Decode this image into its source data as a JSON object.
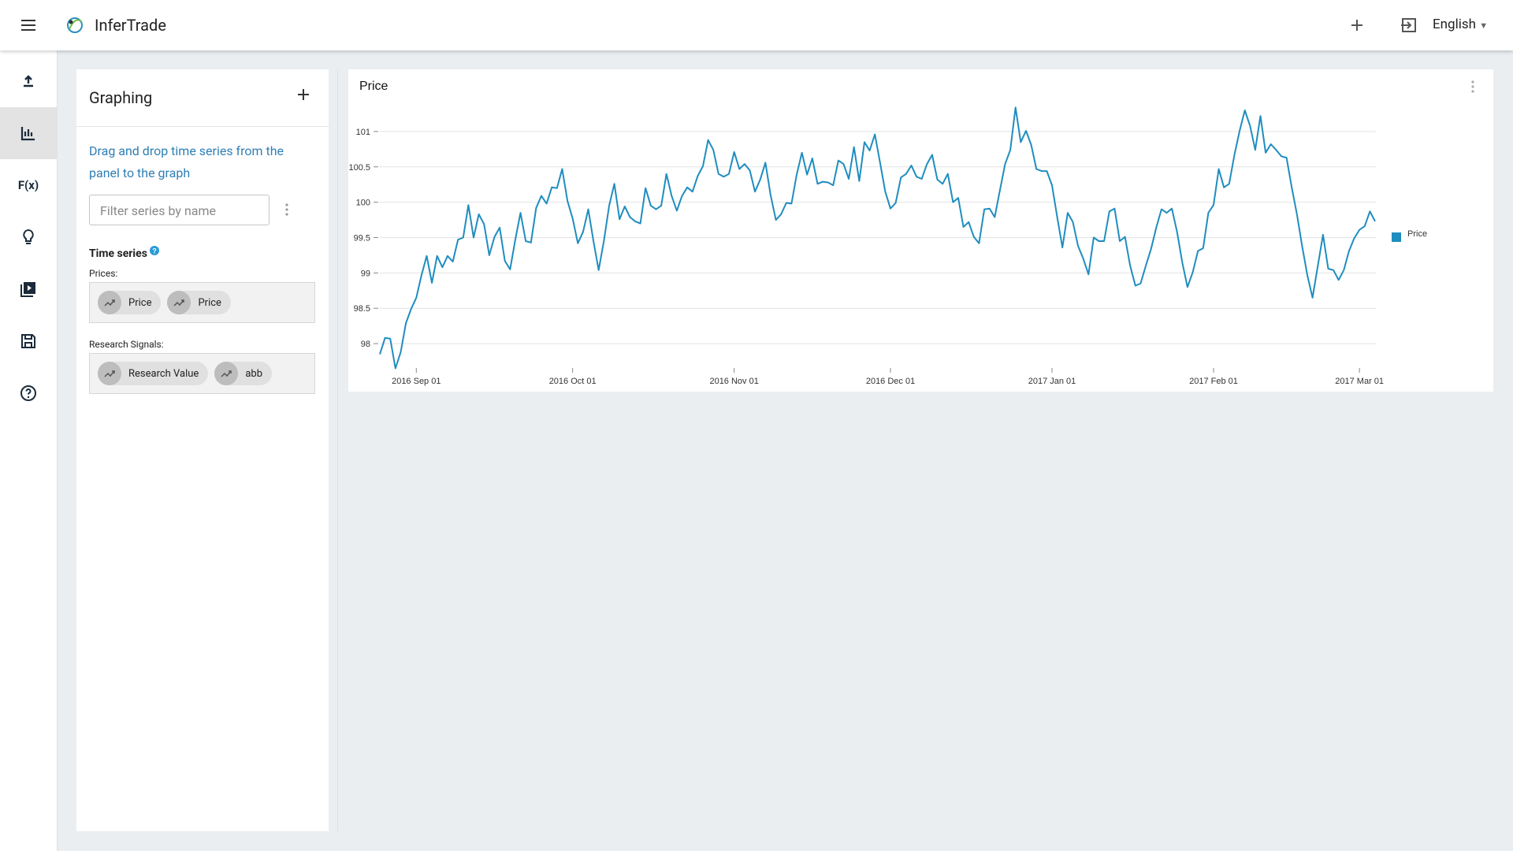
{
  "header": {
    "app_name": "InferTrade",
    "language": "English"
  },
  "sidebar": {
    "function_label": "F(x)"
  },
  "panel": {
    "title": "Graphing",
    "instructions": "Drag and drop time series from the panel to the graph",
    "filter_placeholder": "Filter series by name",
    "time_series_label": "Time series",
    "groups": [
      {
        "label": "Prices:",
        "items": [
          "Price",
          "Price"
        ]
      },
      {
        "label": "Research Signals:",
        "items": [
          "Research Value",
          "abb"
        ]
      }
    ]
  },
  "chart_data": {
    "type": "line",
    "title": "Price",
    "legend": "right",
    "grid": true,
    "ylim": [
      97.6,
      101.4
    ],
    "yticks": [
      98,
      98.5,
      99,
      99.5,
      100,
      100.5,
      101
    ],
    "xlim": [
      "2016-08-25",
      "2017-03-04"
    ],
    "xticks": [
      {
        "value": "2016-09-01",
        "label": "2016 Sep 01"
      },
      {
        "value": "2016-10-01",
        "label": "2016 Oct 01"
      },
      {
        "value": "2016-11-01",
        "label": "2016 Nov 01"
      },
      {
        "value": "2016-12-01",
        "label": "2016 Dec 01"
      },
      {
        "value": "2017-01-01",
        "label": "2017 Jan 01"
      },
      {
        "value": "2017-02-01",
        "label": "2017 Feb 01"
      },
      {
        "value": "2017-03-01",
        "label": "2017 Mar 01"
      }
    ],
    "x": [
      "2016-08-25",
      "2016-08-26",
      "2016-08-27",
      "2016-08-28",
      "2016-08-29",
      "2016-08-30",
      "2016-08-31",
      "2016-09-01",
      "2016-09-02",
      "2016-09-03",
      "2016-09-04",
      "2016-09-05",
      "2016-09-06",
      "2016-09-07",
      "2016-09-08",
      "2016-09-09",
      "2016-09-10",
      "2016-09-11",
      "2016-09-12",
      "2016-09-13",
      "2016-09-14",
      "2016-09-15",
      "2016-09-16",
      "2016-09-17",
      "2016-09-18",
      "2016-09-19",
      "2016-09-20",
      "2016-09-21",
      "2016-09-22",
      "2016-09-23",
      "2016-09-24",
      "2016-09-25",
      "2016-09-26",
      "2016-09-27",
      "2016-09-28",
      "2016-09-29",
      "2016-09-30",
      "2016-10-01",
      "2016-10-02",
      "2016-10-03",
      "2016-10-04",
      "2016-10-05",
      "2016-10-06",
      "2016-10-07",
      "2016-10-08",
      "2016-10-09",
      "2016-10-10",
      "2016-10-11",
      "2016-10-12",
      "2016-10-13",
      "2016-10-14",
      "2016-10-15",
      "2016-10-16",
      "2016-10-17",
      "2016-10-18",
      "2016-10-19",
      "2016-10-20",
      "2016-10-21",
      "2016-10-22",
      "2016-10-23",
      "2016-10-24",
      "2016-10-25",
      "2016-10-26",
      "2016-10-27",
      "2016-10-28",
      "2016-10-29",
      "2016-10-30",
      "2016-10-31",
      "2016-11-01",
      "2016-11-02",
      "2016-11-03",
      "2016-11-04",
      "2016-11-05",
      "2016-11-06",
      "2016-11-07",
      "2016-11-08",
      "2016-11-09",
      "2016-11-10",
      "2016-11-11",
      "2016-11-12",
      "2016-11-13",
      "2016-11-14",
      "2016-11-15",
      "2016-11-16",
      "2016-11-17",
      "2016-11-18",
      "2016-11-19",
      "2016-11-20",
      "2016-11-21",
      "2016-11-22",
      "2016-11-23",
      "2016-11-24",
      "2016-11-25",
      "2016-11-26",
      "2016-11-27",
      "2016-11-28",
      "2016-11-29",
      "2016-11-30",
      "2016-12-01",
      "2016-12-02",
      "2016-12-03",
      "2016-12-04",
      "2016-12-05",
      "2016-12-06",
      "2016-12-07",
      "2016-12-08",
      "2016-12-09",
      "2016-12-10",
      "2016-12-11",
      "2016-12-12",
      "2016-12-13",
      "2016-12-14",
      "2016-12-15",
      "2016-12-16",
      "2016-12-17",
      "2016-12-18",
      "2016-12-19",
      "2016-12-20",
      "2016-12-21",
      "2016-12-22",
      "2016-12-23",
      "2016-12-24",
      "2016-12-25",
      "2016-12-26",
      "2016-12-27",
      "2016-12-28",
      "2016-12-29",
      "2016-12-30",
      "2016-12-31",
      "2017-01-01",
      "2017-01-02",
      "2017-01-03",
      "2017-01-04",
      "2017-01-05",
      "2017-01-06",
      "2017-01-07",
      "2017-01-08",
      "2017-01-09",
      "2017-01-10",
      "2017-01-11",
      "2017-01-12",
      "2017-01-13",
      "2017-01-14",
      "2017-01-15",
      "2017-01-16",
      "2017-01-17",
      "2017-01-18",
      "2017-01-19",
      "2017-01-20",
      "2017-01-21",
      "2017-01-22",
      "2017-01-23",
      "2017-01-24",
      "2017-01-25",
      "2017-01-26",
      "2017-01-27",
      "2017-01-28",
      "2017-01-29",
      "2017-01-30",
      "2017-01-31",
      "2017-02-01",
      "2017-02-02",
      "2017-02-03",
      "2017-02-04",
      "2017-02-05",
      "2017-02-06",
      "2017-02-07",
      "2017-02-08",
      "2017-02-09",
      "2017-02-10",
      "2017-02-11",
      "2017-02-12",
      "2017-02-13",
      "2017-02-14",
      "2017-02-15",
      "2017-02-16",
      "2017-02-17",
      "2017-02-18",
      "2017-02-19",
      "2017-02-20",
      "2017-02-21",
      "2017-02-22",
      "2017-02-23",
      "2017-02-24",
      "2017-02-25",
      "2017-02-26",
      "2017-02-27",
      "2017-02-28",
      "2017-03-01",
      "2017-03-02",
      "2017-03-03",
      "2017-03-04"
    ],
    "series": [
      {
        "name": "Price",
        "color": "#1f8dbf",
        "values": [
          97.85,
          98.08,
          98.07,
          97.65,
          97.88,
          98.29,
          98.49,
          98.65,
          98.97,
          99.24,
          98.86,
          99.24,
          99.08,
          99.24,
          99.16,
          99.47,
          99.5,
          99.96,
          99.5,
          99.83,
          99.69,
          99.25,
          99.51,
          99.64,
          99.17,
          99.05,
          99.47,
          99.85,
          99.45,
          99.43,
          99.92,
          100.09,
          99.98,
          100.21,
          100.2,
          100.47,
          100.02,
          99.77,
          99.42,
          99.58,
          99.9,
          99.45,
          99.04,
          99.45,
          99.95,
          100.26,
          99.76,
          99.94,
          99.79,
          99.73,
          99.7,
          100.2,
          99.95,
          99.9,
          99.95,
          100.4,
          100.09,
          99.88,
          100.09,
          100.21,
          100.15,
          100.37,
          100.51,
          100.88,
          100.74,
          100.4,
          100.36,
          100.4,
          100.71,
          100.47,
          100.54,
          100.45,
          100.15,
          100.32,
          100.56,
          100.1,
          99.75,
          99.83,
          99.99,
          99.98,
          100.39,
          100.7,
          100.39,
          100.62,
          100.26,
          100.29,
          100.28,
          100.24,
          100.59,
          100.54,
          100.33,
          100.78,
          100.3,
          100.85,
          100.73,
          100.96,
          100.56,
          100.15,
          99.91,
          99.99,
          100.35,
          100.4,
          100.52,
          100.36,
          100.33,
          100.54,
          100.67,
          100.32,
          100.26,
          100.4,
          100.0,
          100.06,
          99.65,
          99.72,
          99.51,
          99.42,
          99.9,
          99.91,
          99.79,
          100.17,
          100.54,
          100.74,
          101.34,
          100.85,
          101.01,
          100.81,
          100.47,
          100.44,
          100.44,
          100.24,
          99.79,
          99.36,
          99.85,
          99.72,
          99.38,
          99.2,
          98.98,
          99.5,
          99.45,
          99.45,
          99.87,
          99.91,
          99.45,
          99.51,
          99.1,
          98.82,
          98.85,
          99.1,
          99.34,
          99.64,
          99.9,
          99.85,
          99.91,
          99.58,
          99.15,
          98.8,
          99.01,
          99.31,
          99.35,
          99.85,
          99.96,
          100.47,
          100.21,
          100.26,
          100.67,
          101.01,
          101.3,
          101.08,
          100.74,
          101.22,
          100.7,
          100.82,
          100.74,
          100.65,
          100.63,
          100.21,
          99.83,
          99.38,
          98.97,
          98.65,
          99.1,
          99.54,
          99.06,
          99.04,
          98.9,
          99.04,
          99.31,
          99.49,
          99.61,
          99.66,
          99.87,
          99.73
        ]
      }
    ]
  }
}
